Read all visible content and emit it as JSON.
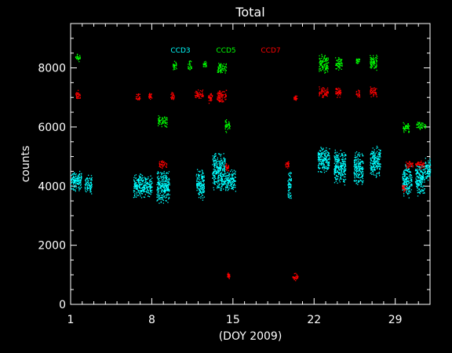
{
  "chart_data": {
    "type": "scatter",
    "title": "Total",
    "xlabel": "(DOY 2009)",
    "ylabel": "counts",
    "xlim": [
      1,
      32
    ],
    "ylim": [
      0,
      9500
    ],
    "x_ticks": [
      1,
      8,
      15,
      22,
      29
    ],
    "y_ticks": [
      0,
      2000,
      4000,
      6000,
      8000
    ],
    "grid": false,
    "legend_position": "top",
    "background": "#000000",
    "axis_color": "#ffffff",
    "series": [
      {
        "name": "CCD3",
        "color": "#00ffff",
        "clusters": [
          {
            "x": [
              1.0,
              1.9
            ],
            "y": [
              3800,
              4600
            ]
          },
          {
            "x": [
              2.2,
              2.8
            ],
            "y": [
              3700,
              4400
            ]
          },
          {
            "x": [
              6.4,
              7.2
            ],
            "y": [
              3600,
              4500
            ]
          },
          {
            "x": [
              7.2,
              8.0
            ],
            "y": [
              3600,
              4400
            ]
          },
          {
            "x": [
              8.4,
              9.5
            ],
            "y": [
              3400,
              4600
            ]
          },
          {
            "x": [
              11.8,
              12.5
            ],
            "y": [
              3500,
              4600
            ]
          },
          {
            "x": [
              13.2,
              14.3
            ],
            "y": [
              3800,
              5200
            ]
          },
          {
            "x": [
              14.3,
              15.2
            ],
            "y": [
              3800,
              4600
            ]
          },
          {
            "x": [
              19.7,
              20.0
            ],
            "y": [
              3500,
              4600
            ]
          },
          {
            "x": [
              22.3,
              23.3
            ],
            "y": [
              4400,
              5400
            ]
          },
          {
            "x": [
              23.7,
              24.7
            ],
            "y": [
              4000,
              5300
            ]
          },
          {
            "x": [
              25.4,
              26.2
            ],
            "y": [
              4000,
              5200
            ]
          },
          {
            "x": [
              26.8,
              27.7
            ],
            "y": [
              4300,
              5400
            ]
          },
          {
            "x": [
              29.6,
              30.4
            ],
            "y": [
              3600,
              4800
            ]
          },
          {
            "x": [
              30.7,
              31.5
            ],
            "y": [
              3600,
              4800
            ]
          },
          {
            "x": [
              31.5,
              32.0
            ],
            "y": [
              4200,
              5000
            ]
          }
        ]
      },
      {
        "name": "CCD5",
        "color": "#00ff00",
        "clusters": [
          {
            "x": [
              1.4,
              1.8
            ],
            "y": [
              8200,
              8500
            ]
          },
          {
            "x": [
              8.5,
              9.3
            ],
            "y": [
              6000,
              6400
            ]
          },
          {
            "x": [
              9.8,
              10.1
            ],
            "y": [
              7900,
              8300
            ]
          },
          {
            "x": [
              11.1,
              11.4
            ],
            "y": [
              7900,
              8300
            ]
          },
          {
            "x": [
              12.4,
              12.7
            ],
            "y": [
              8000,
              8300
            ]
          },
          {
            "x": [
              13.6,
              14.4
            ],
            "y": [
              7800,
              8200
            ]
          },
          {
            "x": [
              14.3,
              14.7
            ],
            "y": [
              5800,
              6300
            ]
          },
          {
            "x": [
              22.4,
              23.2
            ],
            "y": [
              7800,
              8500
            ]
          },
          {
            "x": [
              23.8,
              24.4
            ],
            "y": [
              7900,
              8400
            ]
          },
          {
            "x": [
              25.6,
              25.9
            ],
            "y": [
              8100,
              8400
            ]
          },
          {
            "x": [
              26.8,
              27.4
            ],
            "y": [
              7900,
              8500
            ]
          },
          {
            "x": [
              29.6,
              30.2
            ],
            "y": [
              5800,
              6200
            ]
          },
          {
            "x": [
              30.8,
              31.6
            ],
            "y": [
              5900,
              6200
            ]
          }
        ]
      },
      {
        "name": "CCD7",
        "color": "#ff0000",
        "clusters": [
          {
            "x": [
              1.4,
              1.8
            ],
            "y": [
              6900,
              7300
            ]
          },
          {
            "x": [
              6.6,
              7.0
            ],
            "y": [
              6900,
              7200
            ]
          },
          {
            "x": [
              7.7,
              8.0
            ],
            "y": [
              6900,
              7200
            ]
          },
          {
            "x": [
              8.6,
              9.3
            ],
            "y": [
              4600,
              4900
            ]
          },
          {
            "x": [
              9.6,
              9.9
            ],
            "y": [
              6900,
              7200
            ]
          },
          {
            "x": [
              11.7,
              12.4
            ],
            "y": [
              6900,
              7300
            ]
          },
          {
            "x": [
              12.8,
              13.2
            ],
            "y": [
              6800,
              7200
            ]
          },
          {
            "x": [
              13.6,
              14.4
            ],
            "y": [
              6800,
              7300
            ]
          },
          {
            "x": [
              14.3,
              14.6
            ],
            "y": [
              4500,
              4800
            ]
          },
          {
            "x": [
              14.5,
              14.7
            ],
            "y": [
              850,
              1100
            ]
          },
          {
            "x": [
              19.5,
              19.8
            ],
            "y": [
              4600,
              4900
            ]
          },
          {
            "x": [
              20.2,
              20.5
            ],
            "y": [
              6900,
              7100
            ]
          },
          {
            "x": [
              20.1,
              20.6
            ],
            "y": [
              800,
              1100
            ]
          },
          {
            "x": [
              22.4,
              23.2
            ],
            "y": [
              7000,
              7400
            ]
          },
          {
            "x": [
              23.8,
              24.3
            ],
            "y": [
              7000,
              7400
            ]
          },
          {
            "x": [
              25.6,
              25.9
            ],
            "y": [
              7000,
              7300
            ]
          },
          {
            "x": [
              26.8,
              27.4
            ],
            "y": [
              7000,
              7400
            ]
          },
          {
            "x": [
              29.5,
              29.9
            ],
            "y": [
              3800,
              4100
            ]
          },
          {
            "x": [
              29.9,
              30.5
            ],
            "y": [
              4600,
              4900
            ]
          },
          {
            "x": [
              30.7,
              31.5
            ],
            "y": [
              4600,
              4900
            ]
          }
        ]
      }
    ]
  }
}
